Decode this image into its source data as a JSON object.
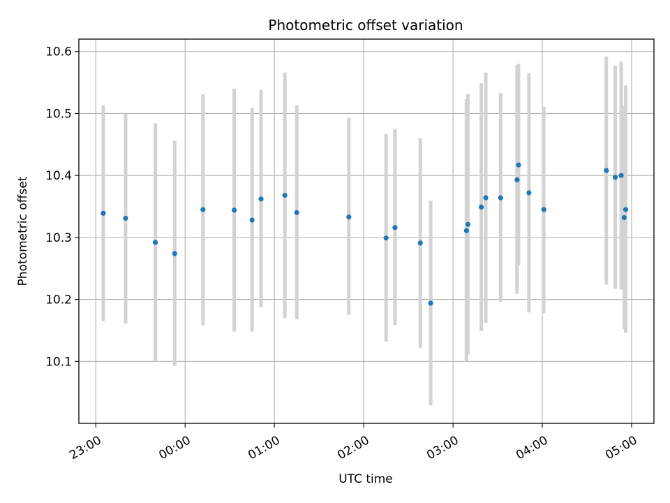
{
  "chart_data": {
    "type": "scatter",
    "title": "Photometric offset variation",
    "xlabel": "UTC time",
    "ylabel": "Photometric offset",
    "x_ticks": [
      "23:00",
      "00:00",
      "01:00",
      "02:00",
      "03:00",
      "04:00",
      "05:00"
    ],
    "x_tick_hours": [
      -1,
      0,
      1,
      2,
      3,
      4,
      5
    ],
    "y_ticks": [
      "10.1",
      "10.2",
      "10.3",
      "10.4",
      "10.5",
      "10.6"
    ],
    "y_tick_values": [
      10.1,
      10.2,
      10.3,
      10.4,
      10.5,
      10.6
    ],
    "xlim_hours": [
      -1.19,
      5.25
    ],
    "ylim": [
      10.0,
      10.62
    ],
    "grid": true,
    "point_color": "#1f77b4",
    "errorbar_color": "#d3d3d3",
    "series": [
      {
        "points": [
          {
            "t": "23:05",
            "y": 10.339,
            "lo": 10.165,
            "hi": 10.513
          },
          {
            "t": "23:20",
            "y": 10.331,
            "lo": 10.161,
            "hi": 10.5
          },
          {
            "t": "23:40",
            "y": 10.292,
            "lo": 10.101,
            "hi": 10.484
          },
          {
            "t": "23:53",
            "y": 10.274,
            "lo": 10.093,
            "hi": 10.456
          },
          {
            "t": "00:12",
            "y": 10.345,
            "lo": 10.158,
            "hi": 10.531
          },
          {
            "t": "00:33",
            "y": 10.344,
            "lo": 10.148,
            "hi": 10.54
          },
          {
            "t": "00:45",
            "y": 10.328,
            "lo": 10.148,
            "hi": 10.509
          },
          {
            "t": "00:51",
            "y": 10.362,
            "lo": 10.187,
            "hi": 10.538
          },
          {
            "t": "01:07",
            "y": 10.368,
            "lo": 10.17,
            "hi": 10.566
          },
          {
            "t": "01:15",
            "y": 10.34,
            "lo": 10.168,
            "hi": 10.513
          },
          {
            "t": "01:50",
            "y": 10.333,
            "lo": 10.175,
            "hi": 10.493
          },
          {
            "t": "02:15",
            "y": 10.299,
            "lo": 10.132,
            "hi": 10.467
          },
          {
            "t": "02:21",
            "y": 10.316,
            "lo": 10.159,
            "hi": 10.475
          },
          {
            "t": "02:38",
            "y": 10.291,
            "lo": 10.122,
            "hi": 10.46
          },
          {
            "t": "02:45",
            "y": 10.194,
            "lo": 10.029,
            "hi": 10.359
          },
          {
            "t": "03:09",
            "y": 10.311,
            "lo": 10.1,
            "hi": 10.523
          },
          {
            "t": "03:10",
            "y": 10.321,
            "lo": 10.111,
            "hi": 10.532
          },
          {
            "t": "03:19",
            "y": 10.349,
            "lo": 10.149,
            "hi": 10.549
          },
          {
            "t": "03:22",
            "y": 10.364,
            "lo": 10.162,
            "hi": 10.566
          },
          {
            "t": "03:32",
            "y": 10.364,
            "lo": 10.196,
            "hi": 10.533
          },
          {
            "t": "03:43",
            "y": 10.393,
            "lo": 10.209,
            "hi": 10.578
          },
          {
            "t": "03:44",
            "y": 10.417,
            "lo": 10.255,
            "hi": 10.58
          },
          {
            "t": "03:51",
            "y": 10.372,
            "lo": 10.179,
            "hi": 10.565
          },
          {
            "t": "04:01",
            "y": 10.345,
            "lo": 10.178,
            "hi": 10.511
          },
          {
            "t": "04:43",
            "y": 10.408,
            "lo": 10.224,
            "hi": 10.592
          },
          {
            "t": "04:49",
            "y": 10.397,
            "lo": 10.217,
            "hi": 10.577
          },
          {
            "t": "04:53",
            "y": 10.4,
            "lo": 10.216,
            "hi": 10.584
          },
          {
            "t": "04:55",
            "y": 10.332,
            "lo": 10.152,
            "hi": 10.512
          },
          {
            "t": "04:56",
            "y": 10.345,
            "lo": 10.146,
            "hi": 10.545
          }
        ]
      }
    ]
  }
}
